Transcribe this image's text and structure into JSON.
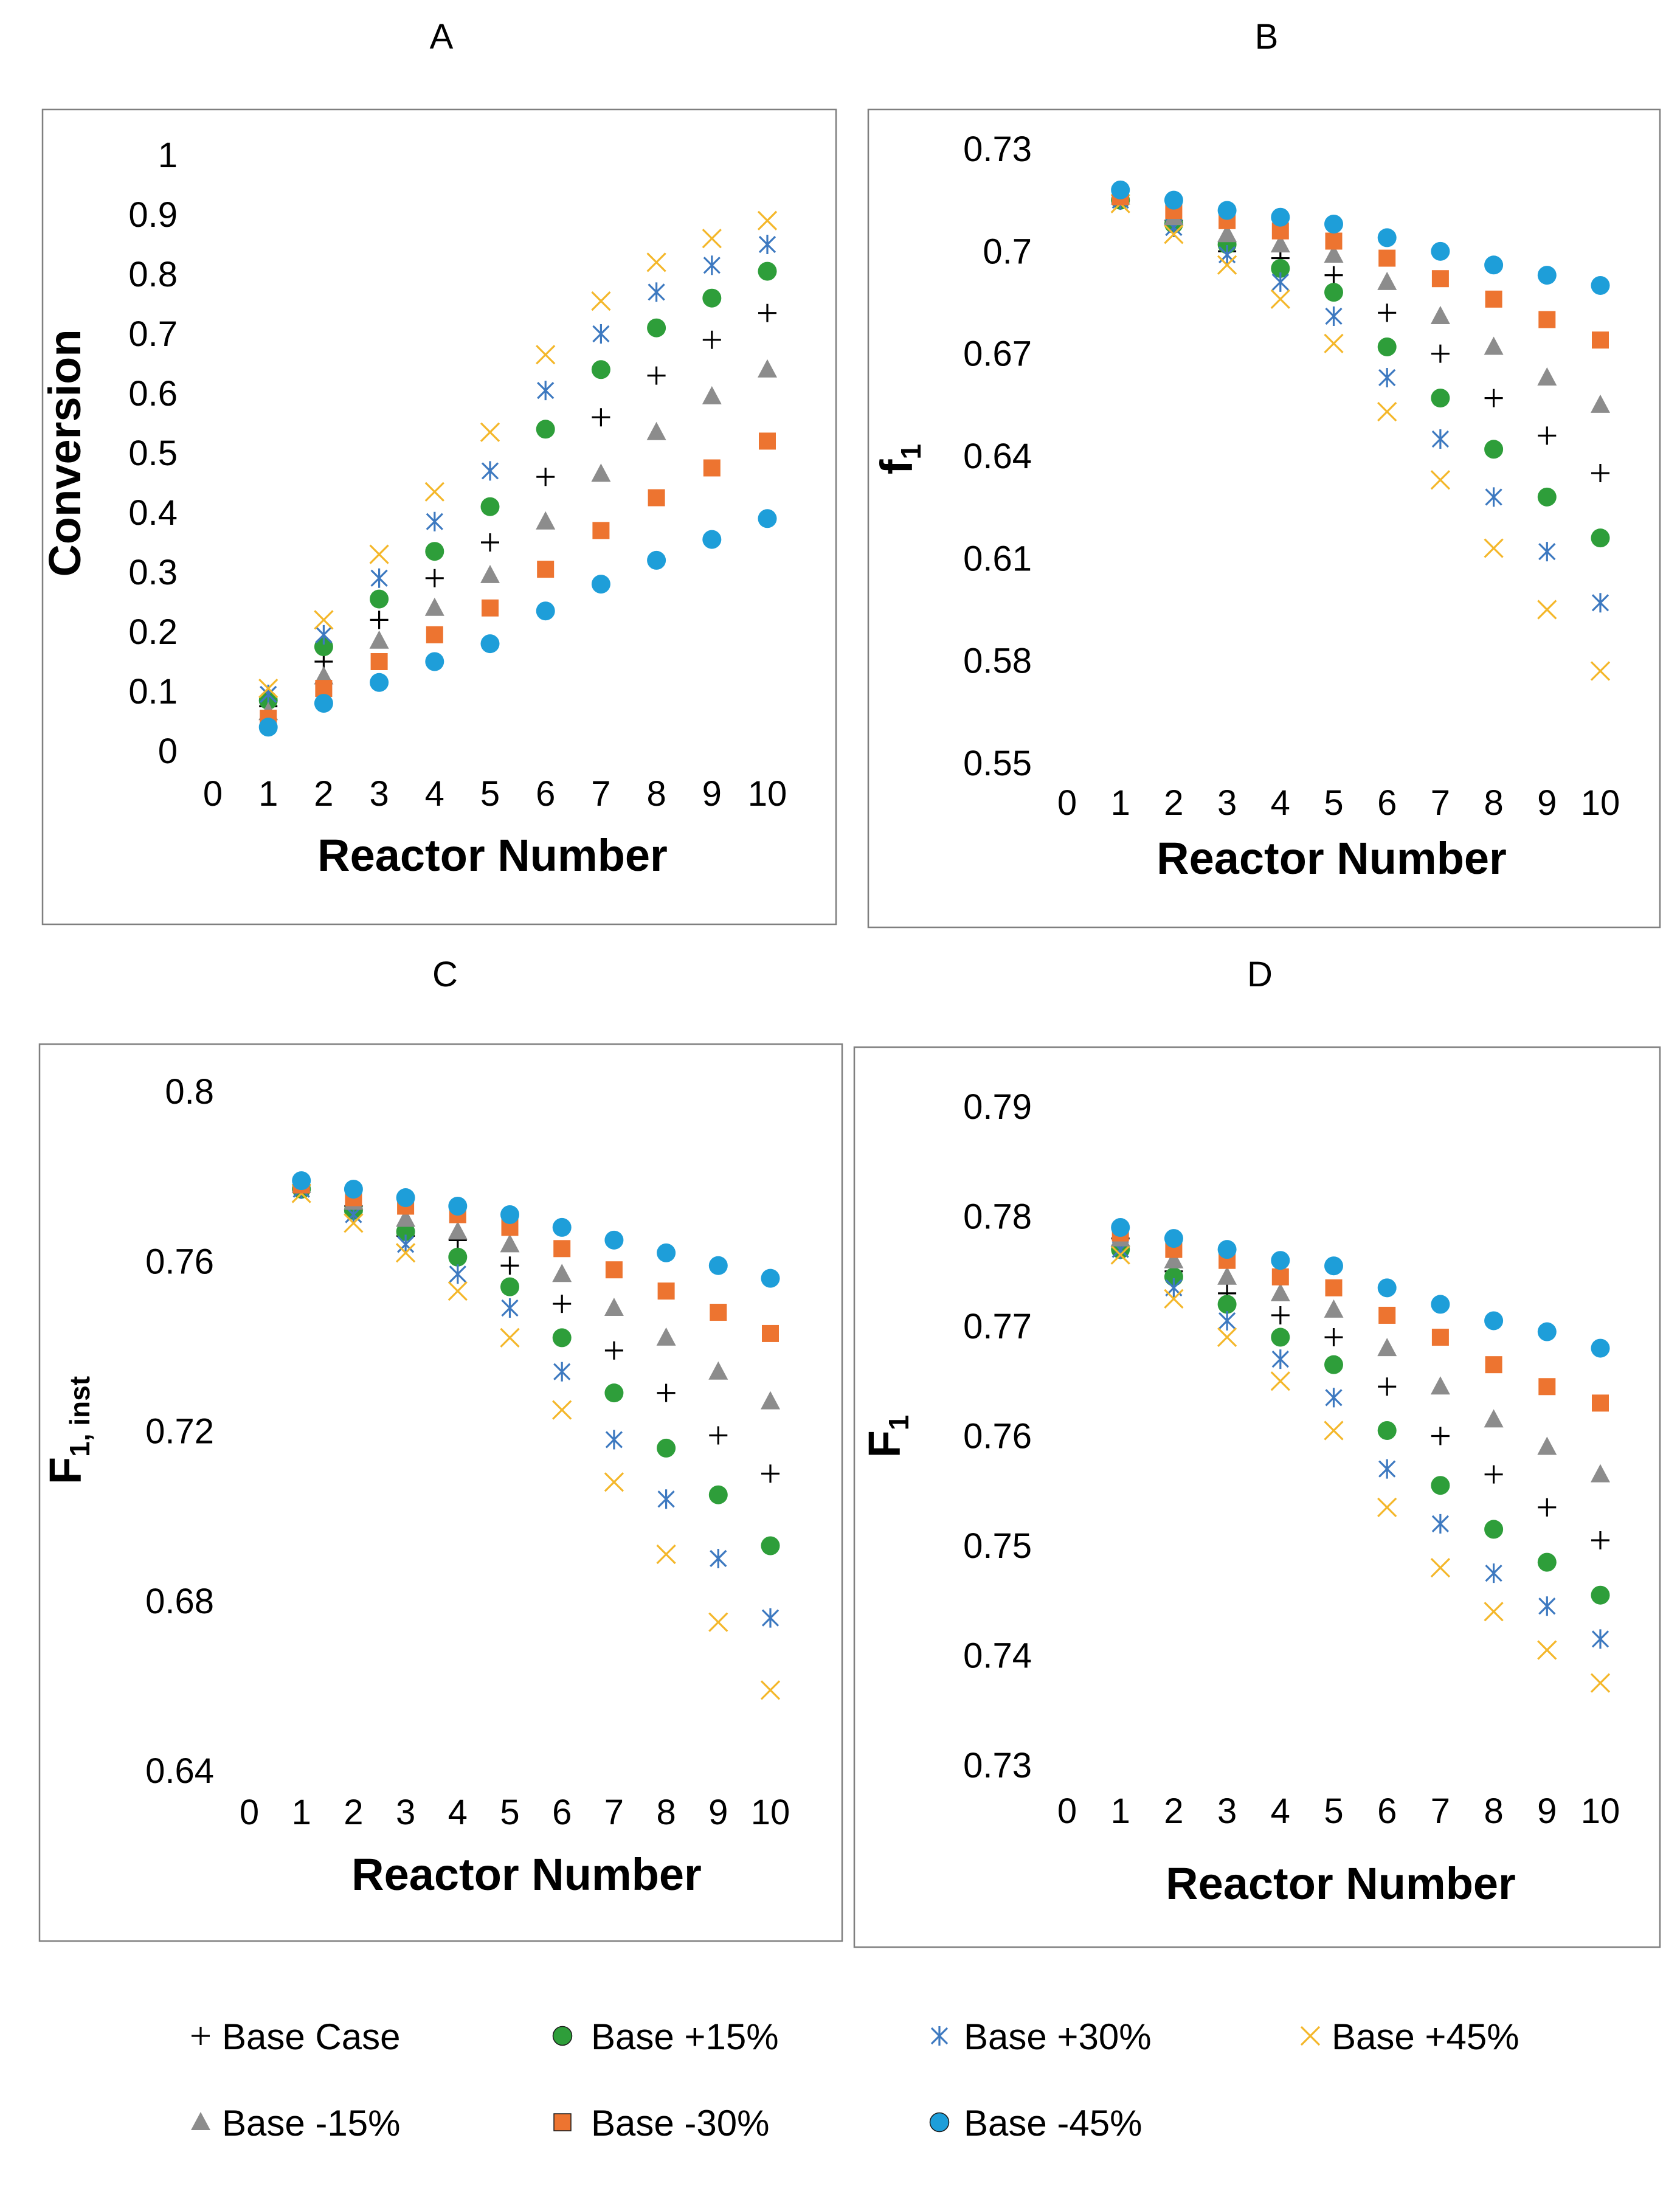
{
  "colors": {
    "base_case": "#000000",
    "plus15": "#2e9e3a",
    "plus30": "#3d79c0",
    "plus45": "#f4b72a",
    "minus15": "#8c8c8c",
    "minus30": "#ed7430",
    "minus45": "#1e9ed9"
  },
  "legend": [
    {
      "key": "base_case",
      "label": "Base Case",
      "marker": "plus"
    },
    {
      "key": "plus15",
      "label": "Base +15%",
      "marker": "circle"
    },
    {
      "key": "plus30",
      "label": "Base +30%",
      "marker": "asterisk"
    },
    {
      "key": "plus45",
      "label": "Base +45%",
      "marker": "x"
    },
    {
      "key": "minus15",
      "label": "Base -15%",
      "marker": "triangle"
    },
    {
      "key": "minus30",
      "label": "Base -30%",
      "marker": "square"
    },
    {
      "key": "minus45",
      "label": "Base -45%",
      "marker": "circle"
    }
  ],
  "chart_data": [
    {
      "panel": "A",
      "type": "scatter",
      "xlabel": "Reactor Number",
      "ylabel": "Conversion",
      "ylabel_sub": "",
      "xlim": [
        0,
        10
      ],
      "ylim": [
        0,
        1
      ],
      "xticks": [
        "0",
        "1",
        "2",
        "3",
        "4",
        "5",
        "6",
        "7",
        "8",
        "9",
        "10"
      ],
      "yticks": [
        "0",
        "0.1",
        "0.2",
        "0.3",
        "0.4",
        "0.5",
        "0.6",
        "0.7",
        "0.8",
        "0.9",
        "1"
      ],
      "ytick_values": [
        0,
        0.1,
        0.2,
        0.3,
        0.4,
        0.5,
        0.6,
        0.7,
        0.8,
        0.9,
        1
      ],
      "x": [
        1,
        2,
        3,
        4,
        5,
        6,
        7,
        8,
        9,
        10
      ],
      "series": [
        {
          "key": "base_case",
          "values": [
            0.075,
            0.15,
            0.22,
            0.29,
            0.35,
            0.46,
            0.56,
            0.63,
            0.69,
            0.735
          ]
        },
        {
          "key": "plus15",
          "values": [
            0.085,
            0.175,
            0.255,
            0.335,
            0.41,
            0.54,
            0.64,
            0.71,
            0.76,
            0.805
          ]
        },
        {
          "key": "plus30",
          "values": [
            0.095,
            0.195,
            0.29,
            0.385,
            0.47,
            0.605,
            0.7,
            0.77,
            0.815,
            0.85
          ]
        },
        {
          "key": "plus45",
          "values": [
            0.105,
            0.22,
            0.33,
            0.435,
            0.535,
            0.665,
            0.755,
            0.82,
            0.86,
            0.89
          ]
        },
        {
          "key": "minus15",
          "values": [
            0.065,
            0.125,
            0.185,
            0.24,
            0.295,
            0.385,
            0.465,
            0.535,
            0.595,
            0.64
          ]
        },
        {
          "key": "minus30",
          "values": [
            0.055,
            0.105,
            0.15,
            0.195,
            0.24,
            0.305,
            0.37,
            0.425,
            0.475,
            0.52
          ]
        },
        {
          "key": "minus45",
          "values": [
            0.04,
            0.08,
            0.115,
            0.15,
            0.18,
            0.235,
            0.28,
            0.32,
            0.355,
            0.39
          ]
        }
      ]
    },
    {
      "panel": "B",
      "type": "scatter",
      "xlabel": "Reactor Number",
      "ylabel": "f",
      "ylabel_sub": "1",
      "xlim": [
        0,
        10
      ],
      "ylim": [
        0.55,
        0.73
      ],
      "xticks": [
        "0",
        "1",
        "2",
        "3",
        "4",
        "5",
        "6",
        "7",
        "8",
        "9",
        "10"
      ],
      "yticks": [
        "0.55",
        "0.58",
        "0.61",
        "0.64",
        "0.67",
        "0.7",
        "0.73"
      ],
      "ytick_values": [
        0.55,
        0.58,
        0.61,
        0.64,
        0.67,
        0.7,
        0.73
      ],
      "x": [
        1,
        2,
        3,
        4,
        5,
        6,
        7,
        8,
        9,
        10
      ],
      "series": [
        {
          "key": "base_case",
          "values": [
            0.715,
            0.709,
            0.7,
            0.698,
            0.693,
            0.682,
            0.67,
            0.657,
            0.646,
            0.635
          ]
        },
        {
          "key": "plus15",
          "values": [
            0.715,
            0.708,
            0.702,
            0.695,
            0.688,
            0.672,
            0.657,
            0.642,
            0.628,
            0.616
          ]
        },
        {
          "key": "plus30",
          "values": [
            0.715,
            0.707,
            0.699,
            0.691,
            0.681,
            0.663,
            0.645,
            0.628,
            0.612,
            0.597
          ]
        },
        {
          "key": "plus45",
          "values": [
            0.714,
            0.705,
            0.696,
            0.686,
            0.673,
            0.653,
            0.633,
            0.613,
            0.595,
            0.577
          ]
        },
        {
          "key": "minus15",
          "values": [
            0.716,
            0.71,
            0.705,
            0.702,
            0.699,
            0.691,
            0.681,
            0.672,
            0.663,
            0.655
          ]
        },
        {
          "key": "minus30",
          "values": [
            0.716,
            0.712,
            0.709,
            0.706,
            0.703,
            0.698,
            0.692,
            0.686,
            0.68,
            0.674
          ]
        },
        {
          "key": "minus45",
          "values": [
            0.718,
            0.715,
            0.712,
            0.71,
            0.708,
            0.704,
            0.7,
            0.696,
            0.693,
            0.69
          ]
        }
      ]
    },
    {
      "panel": "C",
      "type": "scatter",
      "xlabel": "Reactor Number",
      "ylabel": "F",
      "ylabel_sub": "1, inst",
      "xlim": [
        0,
        10
      ],
      "ylim": [
        0.64,
        0.8
      ],
      "xticks": [
        "0",
        "1",
        "2",
        "3",
        "4",
        "5",
        "6",
        "7",
        "8",
        "9",
        "10"
      ],
      "yticks": [
        "0.64",
        "0.68",
        "0.72",
        "0.76",
        "0.8"
      ],
      "ytick_values": [
        0.64,
        0.68,
        0.72,
        0.76,
        0.8
      ],
      "x": [
        1,
        2,
        3,
        4,
        5,
        6,
        7,
        8,
        9,
        10
      ],
      "series": [
        {
          "key": "base_case",
          "values": [
            0.778,
            0.773,
            0.766,
            0.765,
            0.759,
            0.75,
            0.739,
            0.729,
            0.719,
            0.71
          ]
        },
        {
          "key": "plus15",
          "values": [
            0.777,
            0.772,
            0.767,
            0.761,
            0.754,
            0.742,
            0.729,
            0.716,
            0.705,
            0.693
          ]
        },
        {
          "key": "plus30",
          "values": [
            0.777,
            0.771,
            0.764,
            0.757,
            0.749,
            0.734,
            0.718,
            0.704,
            0.69,
            0.676
          ]
        },
        {
          "key": "plus45",
          "values": [
            0.776,
            0.769,
            0.762,
            0.753,
            0.742,
            0.725,
            0.708,
            0.691,
            0.675,
            0.659
          ]
        },
        {
          "key": "minus15",
          "values": [
            0.778,
            0.774,
            0.77,
            0.767,
            0.764,
            0.757,
            0.749,
            0.742,
            0.734,
            0.727
          ]
        },
        {
          "key": "minus30",
          "values": [
            0.778,
            0.775,
            0.773,
            0.771,
            0.768,
            0.763,
            0.758,
            0.753,
            0.748,
            0.743
          ]
        },
        {
          "key": "minus45",
          "values": [
            0.779,
            0.777,
            0.775,
            0.773,
            0.771,
            0.768,
            0.765,
            0.762,
            0.759,
            0.756
          ]
        }
      ]
    },
    {
      "panel": "D",
      "type": "scatter",
      "xlabel": "Reactor Number",
      "ylabel": "F",
      "ylabel_sub": "1",
      "xlim": [
        0,
        10
      ],
      "ylim": [
        0.73,
        0.79
      ],
      "xticks": [
        "0",
        "1",
        "2",
        "3",
        "4",
        "5",
        "6",
        "7",
        "8",
        "9",
        "10"
      ],
      "yticks": [
        "0.73",
        "0.74",
        "0.75",
        "0.76",
        "0.77",
        "0.78",
        "0.79"
      ],
      "ytick_values": [
        0.73,
        0.74,
        0.75,
        0.76,
        0.77,
        0.78,
        0.79
      ],
      "x": [
        1,
        2,
        3,
        4,
        5,
        6,
        7,
        8,
        9,
        10
      ],
      "series": [
        {
          "key": "base_case",
          "values": [
            0.778,
            0.775,
            0.773,
            0.771,
            0.769,
            0.7645,
            0.76,
            0.7565,
            0.7535,
            0.7505
          ]
        },
        {
          "key": "plus15",
          "values": [
            0.777,
            0.7745,
            0.772,
            0.769,
            0.7665,
            0.7605,
            0.7555,
            0.7515,
            0.7485,
            0.7455
          ]
        },
        {
          "key": "plus30",
          "values": [
            0.777,
            0.7735,
            0.7705,
            0.767,
            0.7635,
            0.757,
            0.752,
            0.7475,
            0.7445,
            0.7415
          ]
        },
        {
          "key": "plus45",
          "values": [
            0.7765,
            0.7725,
            0.769,
            0.765,
            0.7605,
            0.7535,
            0.748,
            0.744,
            0.7405,
            0.7375
          ]
        },
        {
          "key": "minus15",
          "values": [
            0.778,
            0.776,
            0.7745,
            0.773,
            0.7715,
            0.768,
            0.7645,
            0.7615,
            0.759,
            0.7565
          ]
        },
        {
          "key": "minus30",
          "values": [
            0.7785,
            0.777,
            0.776,
            0.7745,
            0.7735,
            0.771,
            0.769,
            0.7665,
            0.7645,
            0.763
          ]
        },
        {
          "key": "minus45",
          "values": [
            0.779,
            0.778,
            0.777,
            0.776,
            0.7755,
            0.7735,
            0.772,
            0.7705,
            0.7695,
            0.768
          ]
        }
      ]
    }
  ]
}
